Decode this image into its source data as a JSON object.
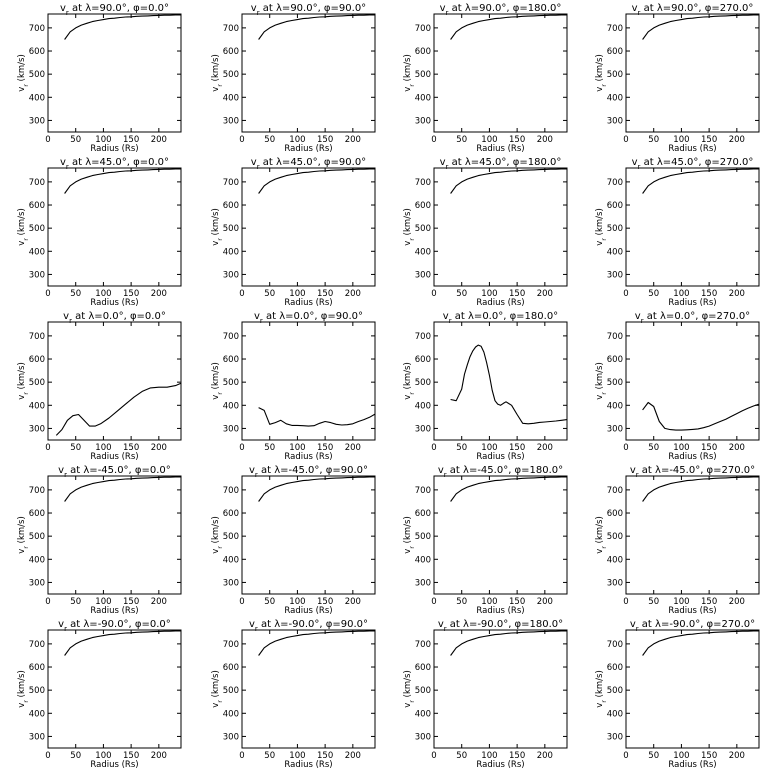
{
  "chart_data": {
    "type": "line",
    "layout": {
      "rows": 5,
      "cols": 4
    },
    "xlabel": "Radius (Rs)",
    "ylabel": "v_r (km/s)",
    "xlim": [
      0,
      240
    ],
    "ylim": [
      250,
      760
    ],
    "xticks": [
      0,
      50,
      100,
      150,
      200
    ],
    "yticks": [
      300,
      400,
      500,
      600,
      700
    ],
    "grid": false,
    "panels": [
      {
        "title": "v_r at λ=90.0°, φ=0.0°",
        "lambda": 90.0,
        "phi": 0.0,
        "x": [
          30,
          40,
          50,
          60,
          70,
          80,
          90,
          100,
          110,
          120,
          130,
          140,
          150,
          160,
          170,
          180,
          190,
          200,
          210,
          220,
          230,
          240
        ],
        "y": [
          650,
          683,
          700,
          712,
          720,
          727,
          732,
          736,
          740,
          742,
          745,
          747,
          748,
          750,
          751,
          752,
          753,
          754,
          755,
          755,
          756,
          756
        ]
      },
      {
        "title": "v_r at λ=90.0°, φ=90.0°",
        "lambda": 90.0,
        "phi": 90.0,
        "x": [
          30,
          40,
          50,
          60,
          70,
          80,
          90,
          100,
          110,
          120,
          130,
          140,
          150,
          160,
          170,
          180,
          190,
          200,
          210,
          220,
          230,
          240
        ],
        "y": [
          650,
          683,
          700,
          712,
          720,
          727,
          732,
          736,
          740,
          742,
          745,
          747,
          748,
          750,
          751,
          752,
          753,
          754,
          755,
          755,
          756,
          756
        ]
      },
      {
        "title": "v_r at λ=90.0°, φ=180.0°",
        "lambda": 90.0,
        "phi": 180.0,
        "x": [
          30,
          40,
          50,
          60,
          70,
          80,
          90,
          100,
          110,
          120,
          130,
          140,
          150,
          160,
          170,
          180,
          190,
          200,
          210,
          220,
          230,
          240
        ],
        "y": [
          650,
          683,
          700,
          712,
          720,
          727,
          732,
          736,
          740,
          742,
          745,
          747,
          748,
          750,
          751,
          752,
          753,
          754,
          755,
          755,
          756,
          756
        ]
      },
      {
        "title": "v_r at λ=90.0°, φ=270.0°",
        "lambda": 90.0,
        "phi": 270.0,
        "x": [
          30,
          40,
          50,
          60,
          70,
          80,
          90,
          100,
          110,
          120,
          130,
          140,
          150,
          160,
          170,
          180,
          190,
          200,
          210,
          220,
          230,
          240
        ],
        "y": [
          650,
          683,
          700,
          712,
          720,
          727,
          732,
          736,
          740,
          742,
          745,
          747,
          748,
          750,
          751,
          752,
          753,
          754,
          755,
          755,
          756,
          756
        ]
      },
      {
        "title": "v_r at λ=45.0°, φ=0.0°",
        "lambda": 45.0,
        "phi": 0.0,
        "x": [
          30,
          40,
          50,
          60,
          70,
          80,
          90,
          100,
          110,
          120,
          130,
          140,
          150,
          160,
          170,
          180,
          190,
          200,
          210,
          220,
          230,
          240
        ],
        "y": [
          650,
          683,
          700,
          712,
          720,
          727,
          732,
          736,
          740,
          742,
          745,
          747,
          748,
          750,
          751,
          752,
          753,
          754,
          755,
          755,
          756,
          756
        ]
      },
      {
        "title": "v_r at λ=45.0°, φ=90.0°",
        "lambda": 45.0,
        "phi": 90.0,
        "x": [
          30,
          40,
          50,
          60,
          70,
          80,
          90,
          100,
          110,
          120,
          130,
          140,
          150,
          160,
          170,
          180,
          190,
          200,
          210,
          220,
          230,
          240
        ],
        "y": [
          650,
          683,
          700,
          712,
          720,
          727,
          732,
          736,
          740,
          742,
          745,
          747,
          748,
          750,
          751,
          752,
          753,
          754,
          755,
          755,
          756,
          756
        ]
      },
      {
        "title": "v_r at λ=45.0°, φ=180.0°",
        "lambda": 45.0,
        "phi": 180.0,
        "x": [
          30,
          40,
          50,
          60,
          70,
          80,
          90,
          100,
          110,
          120,
          130,
          140,
          150,
          160,
          170,
          180,
          190,
          200,
          210,
          220,
          230,
          240
        ],
        "y": [
          650,
          683,
          700,
          712,
          720,
          727,
          732,
          736,
          740,
          742,
          745,
          747,
          748,
          750,
          751,
          752,
          753,
          754,
          755,
          755,
          756,
          756
        ]
      },
      {
        "title": "v_r at λ=45.0°, φ=270.0°",
        "lambda": 45.0,
        "phi": 270.0,
        "x": [
          30,
          40,
          50,
          60,
          70,
          80,
          90,
          100,
          110,
          120,
          130,
          140,
          150,
          160,
          170,
          180,
          190,
          200,
          210,
          220,
          230,
          240
        ],
        "y": [
          650,
          683,
          700,
          712,
          720,
          727,
          732,
          736,
          740,
          742,
          745,
          747,
          748,
          750,
          751,
          752,
          753,
          754,
          755,
          755,
          756,
          756
        ]
      },
      {
        "title": "v_r at λ=0.0°, φ=0.0°",
        "lambda": 0.0,
        "phi": 0.0,
        "x": [
          15,
          25,
          35,
          45,
          55,
          65,
          75,
          85,
          95,
          110,
          125,
          140,
          155,
          170,
          185,
          200,
          215,
          230,
          240
        ],
        "y": [
          270,
          295,
          335,
          355,
          360,
          335,
          310,
          310,
          320,
          345,
          375,
          405,
          435,
          460,
          475,
          478,
          478,
          485,
          495
        ]
      },
      {
        "title": "v_r at λ=0.0°, φ=90.0°",
        "lambda": 0.0,
        "phi": 90.0,
        "x": [
          30,
          40,
          50,
          60,
          70,
          80,
          90,
          100,
          110,
          120,
          130,
          140,
          150,
          160,
          170,
          180,
          190,
          200,
          210,
          220,
          230,
          240
        ],
        "y": [
          390,
          378,
          318,
          325,
          335,
          320,
          313,
          313,
          312,
          310,
          312,
          322,
          330,
          325,
          318,
          315,
          316,
          320,
          330,
          338,
          348,
          362
        ]
      },
      {
        "title": "v_r at λ=0.0°, φ=180.0°",
        "lambda": 0.0,
        "phi": 180.0,
        "x": [
          30,
          40,
          50,
          55,
          60,
          65,
          70,
          75,
          80,
          85,
          90,
          95,
          100,
          105,
          110,
          115,
          120,
          125,
          130,
          140,
          150,
          160,
          170,
          180,
          190,
          200,
          210,
          220,
          230,
          240
        ],
        "y": [
          425,
          420,
          470,
          535,
          575,
          610,
          635,
          652,
          660,
          655,
          630,
          585,
          530,
          465,
          420,
          405,
          400,
          408,
          415,
          400,
          360,
          322,
          320,
          322,
          326,
          328,
          330,
          332,
          335,
          338
        ]
      },
      {
        "title": "v_r at λ=0.0°, φ=270.0°",
        "lambda": 0.0,
        "phi": 270.0,
        "x": [
          30,
          40,
          50,
          60,
          70,
          80,
          90,
          100,
          110,
          120,
          130,
          140,
          150,
          160,
          170,
          180,
          190,
          200,
          210,
          220,
          230,
          240
        ],
        "y": [
          380,
          412,
          395,
          330,
          300,
          295,
          293,
          293,
          294,
          296,
          298,
          303,
          310,
          320,
          330,
          340,
          352,
          364,
          376,
          387,
          397,
          405
        ]
      },
      {
        "title": "v_r at λ=-45.0°, φ=0.0°",
        "lambda": -45.0,
        "phi": 0.0,
        "x": [
          30,
          40,
          50,
          60,
          70,
          80,
          90,
          100,
          110,
          120,
          130,
          140,
          150,
          160,
          170,
          180,
          190,
          200,
          210,
          220,
          230,
          240
        ],
        "y": [
          650,
          683,
          700,
          712,
          720,
          727,
          732,
          736,
          740,
          742,
          745,
          747,
          748,
          750,
          751,
          752,
          753,
          754,
          755,
          755,
          756,
          756
        ]
      },
      {
        "title": "v_r at λ=-45.0°, φ=90.0°",
        "lambda": -45.0,
        "phi": 90.0,
        "x": [
          30,
          40,
          50,
          60,
          70,
          80,
          90,
          100,
          110,
          120,
          130,
          140,
          150,
          160,
          170,
          180,
          190,
          200,
          210,
          220,
          230,
          240
        ],
        "y": [
          650,
          683,
          700,
          712,
          720,
          727,
          732,
          736,
          740,
          742,
          745,
          747,
          748,
          750,
          751,
          752,
          753,
          754,
          755,
          755,
          756,
          756
        ]
      },
      {
        "title": "v_r at λ=-45.0°, φ=180.0°",
        "lambda": -45.0,
        "phi": 180.0,
        "x": [
          30,
          40,
          50,
          60,
          70,
          80,
          90,
          100,
          110,
          120,
          130,
          140,
          150,
          160,
          170,
          180,
          190,
          200,
          210,
          220,
          230,
          240
        ],
        "y": [
          650,
          683,
          700,
          712,
          720,
          727,
          732,
          736,
          740,
          742,
          745,
          747,
          748,
          750,
          751,
          752,
          753,
          754,
          755,
          755,
          756,
          756
        ]
      },
      {
        "title": "v_r at λ=-45.0°, φ=270.0°",
        "lambda": -45.0,
        "phi": 270.0,
        "x": [
          30,
          40,
          50,
          60,
          70,
          80,
          90,
          100,
          110,
          120,
          130,
          140,
          150,
          160,
          170,
          180,
          190,
          200,
          210,
          220,
          230,
          240
        ],
        "y": [
          650,
          683,
          700,
          712,
          720,
          727,
          732,
          736,
          740,
          742,
          745,
          747,
          748,
          750,
          751,
          752,
          753,
          754,
          755,
          755,
          756,
          756
        ]
      },
      {
        "title": "v_r at λ=-90.0°, φ=0.0°",
        "lambda": -90.0,
        "phi": 0.0,
        "x": [
          30,
          40,
          50,
          60,
          70,
          80,
          90,
          100,
          110,
          120,
          130,
          140,
          150,
          160,
          170,
          180,
          190,
          200,
          210,
          220,
          230,
          240
        ],
        "y": [
          650,
          683,
          700,
          712,
          720,
          727,
          732,
          736,
          740,
          742,
          745,
          747,
          748,
          750,
          751,
          752,
          753,
          754,
          755,
          755,
          756,
          756
        ]
      },
      {
        "title": "v_r at λ=-90.0°, φ=90.0°",
        "lambda": -90.0,
        "phi": 90.0,
        "x": [
          30,
          40,
          50,
          60,
          70,
          80,
          90,
          100,
          110,
          120,
          130,
          140,
          150,
          160,
          170,
          180,
          190,
          200,
          210,
          220,
          230,
          240
        ],
        "y": [
          650,
          683,
          700,
          712,
          720,
          727,
          732,
          736,
          740,
          742,
          745,
          747,
          748,
          750,
          751,
          752,
          753,
          754,
          755,
          755,
          756,
          756
        ]
      },
      {
        "title": "v_r at λ=-90.0°, φ=180.0°",
        "lambda": -90.0,
        "phi": 180.0,
        "x": [
          30,
          40,
          50,
          60,
          70,
          80,
          90,
          100,
          110,
          120,
          130,
          140,
          150,
          160,
          170,
          180,
          190,
          200,
          210,
          220,
          230,
          240
        ],
        "y": [
          650,
          683,
          700,
          712,
          720,
          727,
          732,
          736,
          740,
          742,
          745,
          747,
          748,
          750,
          751,
          752,
          753,
          754,
          755,
          755,
          756,
          756
        ]
      },
      {
        "title": "v_r at λ=-90.0°, φ=270.0°",
        "lambda": -90.0,
        "phi": 270.0,
        "x": [
          30,
          40,
          50,
          60,
          70,
          80,
          90,
          100,
          110,
          120,
          130,
          140,
          150,
          160,
          170,
          180,
          190,
          200,
          210,
          220,
          230,
          240
        ],
        "y": [
          650,
          683,
          700,
          712,
          720,
          727,
          732,
          736,
          740,
          742,
          745,
          747,
          748,
          750,
          751,
          752,
          753,
          754,
          755,
          755,
          756,
          756
        ]
      }
    ]
  }
}
